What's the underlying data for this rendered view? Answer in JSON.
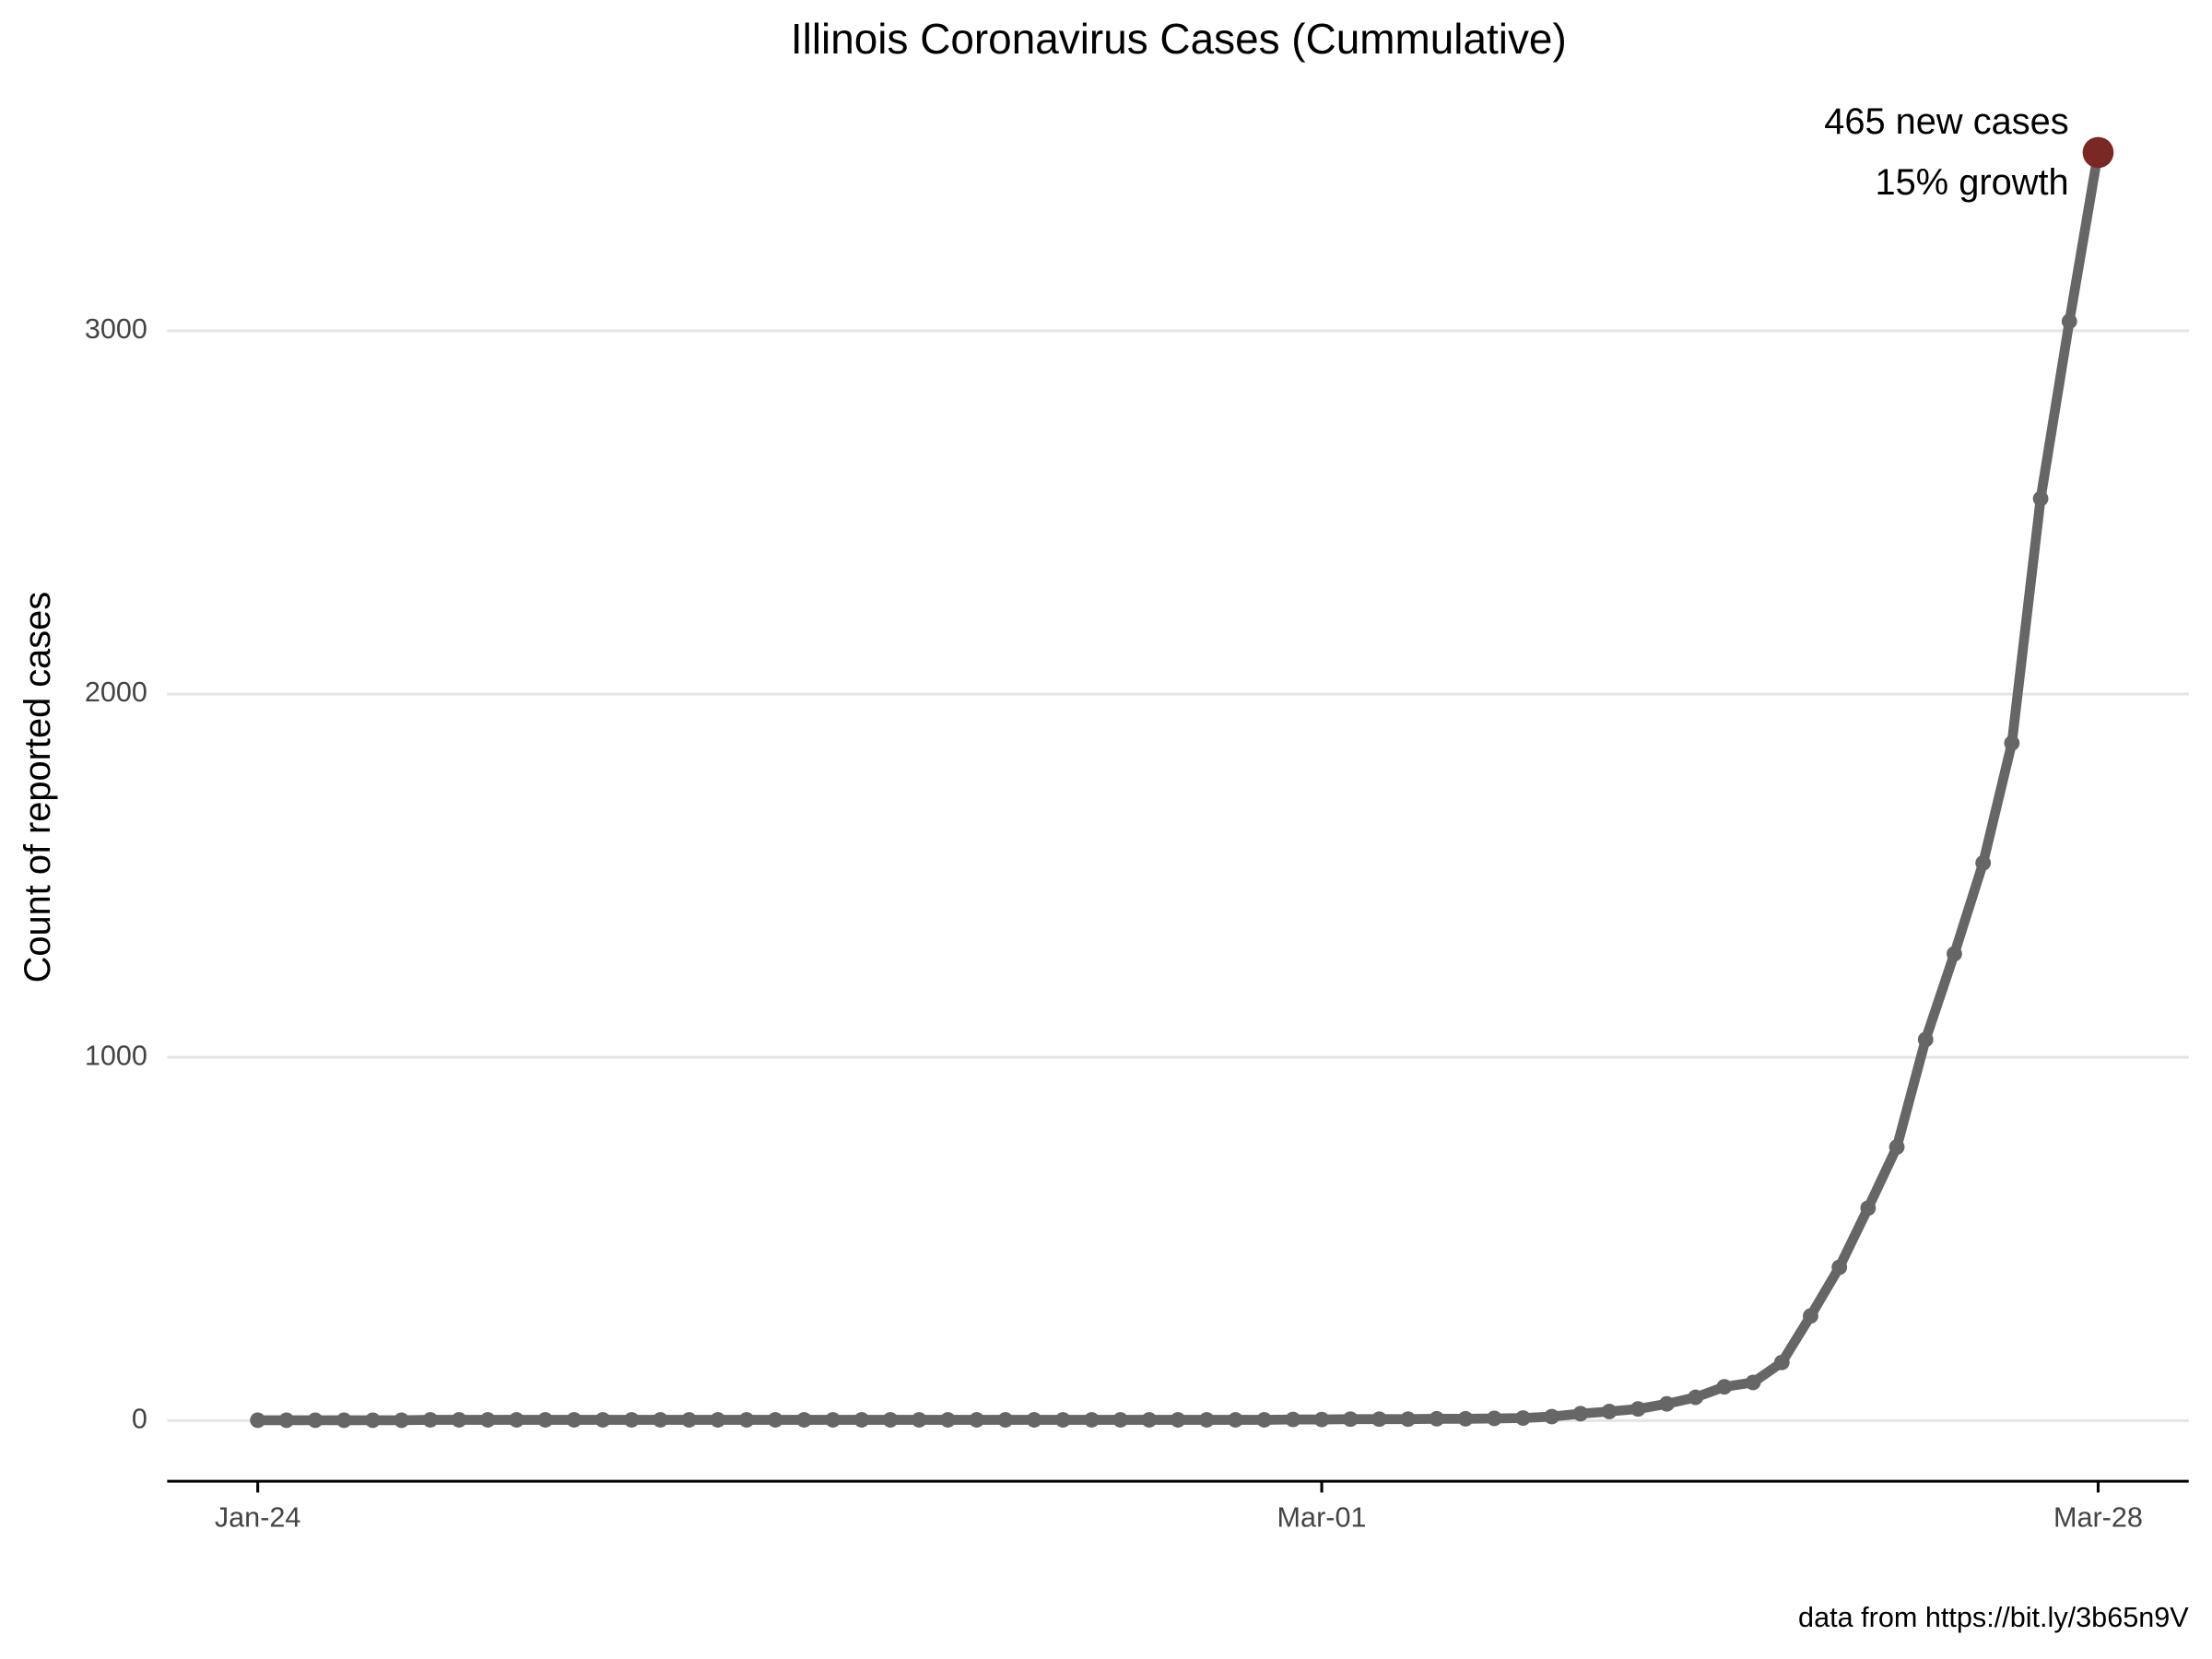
{
  "chart_data": {
    "type": "line",
    "title": "Illinois Coronavirus Cases (Cummulative)",
    "y_label": "Count of reported cases",
    "caption": "data from https://bit.ly/3b65n9V",
    "annotations": [
      "465 new cases",
      "15% growth"
    ],
    "x": [
      0,
      1,
      2,
      3,
      4,
      5,
      6,
      7,
      8,
      9,
      10,
      11,
      12,
      13,
      14,
      15,
      16,
      17,
      18,
      19,
      20,
      21,
      22,
      23,
      24,
      25,
      26,
      27,
      28,
      29,
      30,
      31,
      32,
      33,
      34,
      35,
      36,
      37,
      38,
      39,
      40,
      41,
      42,
      43,
      44,
      45,
      46,
      47,
      48,
      49,
      50,
      51,
      52,
      53,
      54,
      55,
      56,
      57,
      58,
      59,
      60,
      61,
      62,
      63,
      64
    ],
    "series": [
      {
        "name": "Cases",
        "color": "#666666",
        "values": [
          1,
          1,
          1,
          1,
          1,
          1,
          2,
          2,
          2,
          2,
          2,
          2,
          2,
          2,
          2,
          2,
          2,
          2,
          2,
          2,
          2,
          2,
          2,
          2,
          2,
          2,
          2,
          2,
          2,
          2,
          2,
          2,
          2,
          2,
          2,
          2,
          3,
          3,
          4,
          4,
          4,
          5,
          5,
          6,
          7,
          11,
          19,
          25,
          32,
          46,
          64,
          93,
          105,
          160,
          288,
          422,
          585,
          753,
          1049,
          1285,
          1535,
          1865,
          2538,
          3026,
          3491
        ]
      }
    ],
    "highlight_color": "#7b2723",
    "xlim": [
      -3.15,
      67.15
    ],
    "xticks": [
      {
        "value": 0,
        "label": "Jan-24"
      },
      {
        "value": 37,
        "label": "Mar-01"
      },
      {
        "value": 64,
        "label": "Mar-28"
      }
    ],
    "ylim": [
      -167,
      3600
    ],
    "yticks": [
      0,
      1000,
      2000,
      3000
    ],
    "grid": true
  }
}
